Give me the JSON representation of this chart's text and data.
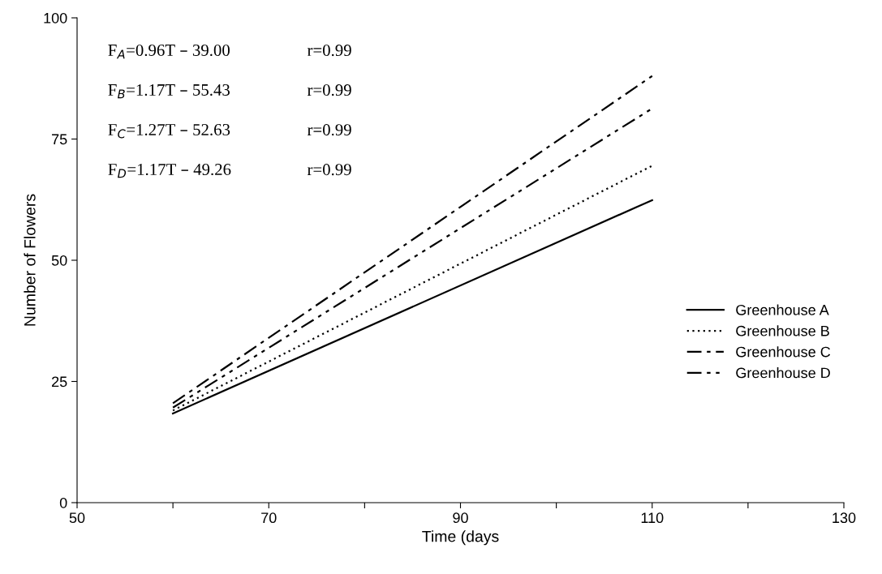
{
  "chart_data": {
    "type": "line",
    "xlabel": "Time (days",
    "ylabel": "Number of Flowers",
    "xlim": [
      50,
      130
    ],
    "ylim": [
      0,
      100
    ],
    "xticks": [
      50,
      {
        "value": 60,
        "label": null
      },
      70,
      {
        "value": 80,
        "label": null
      },
      90,
      {
        "value": 100,
        "label": null
      },
      110,
      {
        "value": 120,
        "label": null
      },
      130
    ],
    "yticks": [
      0,
      25,
      50,
      75,
      100
    ],
    "grid": false,
    "legend": "right",
    "marker": "none",
    "x": [
      60,
      110
    ],
    "series": [
      {
        "name": "Greenhouse A",
        "color": "#000000",
        "line_style": "solid",
        "values": [
          18.4,
          62.4
        ]
      },
      {
        "name": "Greenhouse B",
        "color": "#000000",
        "line_style": "dotted",
        "values": [
          19.0,
          69.5
        ]
      },
      {
        "name": "Greenhouse C",
        "color": "#000000",
        "line_style": "dashdot",
        "values": [
          20.5,
          88.0
        ]
      },
      {
        "name": "Greenhouse D",
        "color": "#000000",
        "line_style": "dashdotdot",
        "values": [
          19.6,
          81.3
        ]
      }
    ],
    "annotations": [
      "F$_{A}$=0.96T – 39.00",
      "r=0.99",
      "F$_{B}$=1.17T – 55.43",
      "r=0.99",
      "F$_{C}$=1.27T – 52.63",
      "r=0.99",
      "F$_{D}$=1.17T – 49.26",
      "r=0.99"
    ]
  }
}
